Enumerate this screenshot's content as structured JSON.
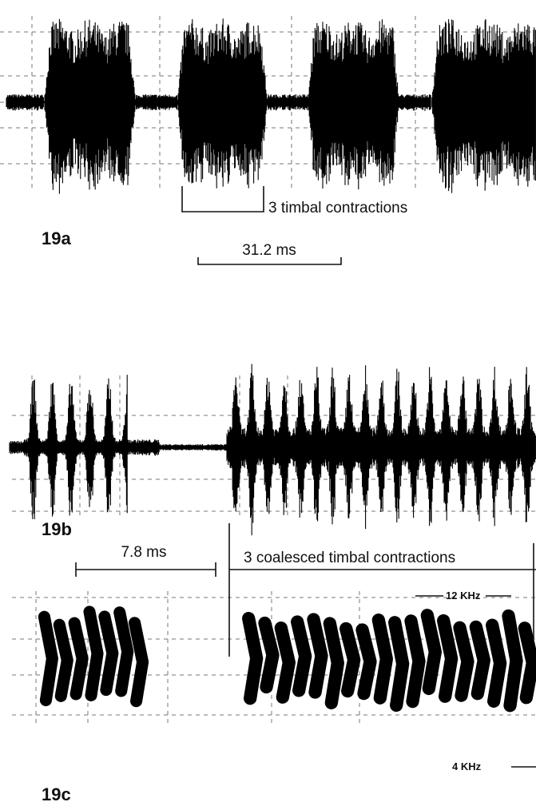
{
  "panels": [
    {
      "label": "19a",
      "annotations": [
        "3 timbal contractions",
        "31.2 ms"
      ]
    },
    {
      "label": "19b",
      "annotations": [
        "7.8 ms",
        "3 coalesced timbal contractions"
      ]
    },
    {
      "label": "19c",
      "annotations": [
        "12 KHz",
        "4 KHz"
      ]
    }
  ]
}
